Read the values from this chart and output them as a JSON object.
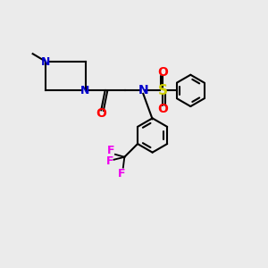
{
  "bg_color": "#ebebeb",
  "bond_color": "#000000",
  "N_color": "#0000cc",
  "O_color": "#ff0000",
  "S_color": "#cccc00",
  "F_color": "#ee00ee",
  "font_size": 9,
  "lw": 1.5,
  "xlim": [
    0,
    10
  ],
  "ylim": [
    0,
    10
  ]
}
